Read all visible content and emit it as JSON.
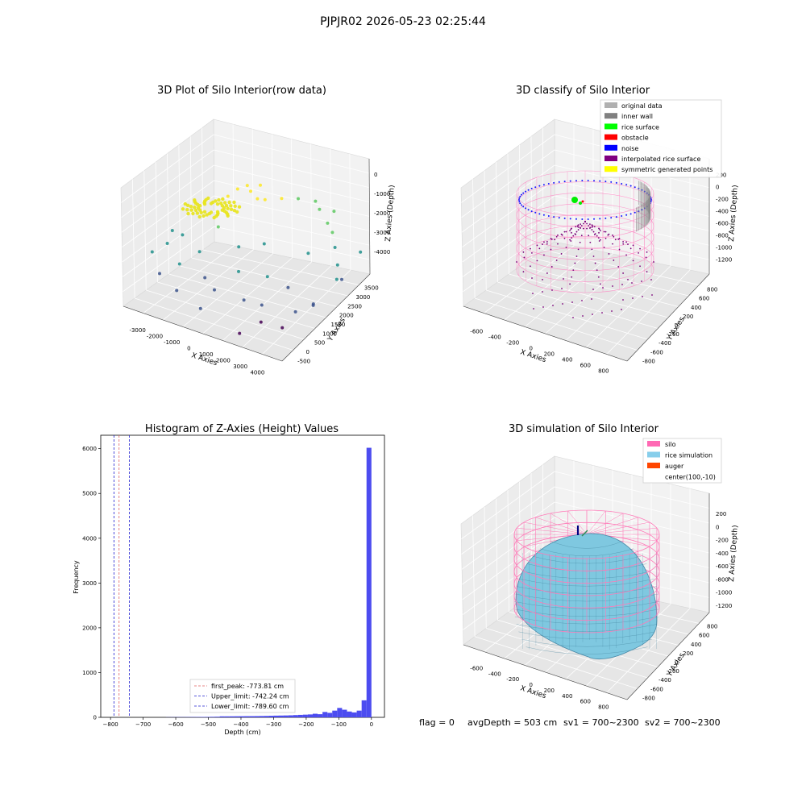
{
  "figure": {
    "suptitle": "PJPJR02 2026-05-23 02:25:44",
    "footer": {
      "flag": "flag = 0",
      "avg": "avgDepth = 503 cm",
      "sv1": "sv1 = 700~2300",
      "sv2": "sv2 = 700~2300"
    }
  },
  "chart_data": [
    {
      "type": "scatter",
      "subtype": "3d",
      "title": "3D Plot of Silo Interior(row data)",
      "xlabel": "X Axies",
      "ylabel": "Y Axies",
      "zlabel": "Z Axies (Depth)",
      "xticks": [
        "-3000",
        "-2000",
        "-1000",
        "0",
        "1000",
        "2000",
        "3000",
        "4000"
      ],
      "yticks": [
        "-500",
        "0",
        "500",
        "1000",
        "1500",
        "2000",
        "2500",
        "3000",
        "3500"
      ],
      "zticks": [
        "-4000",
        "-3000",
        "-2000",
        "-1000",
        "0"
      ],
      "colormap": [
        "#440154",
        "#3b528b",
        "#21918c",
        "#5ec962",
        "#fde725"
      ],
      "points": [
        {
          "x": -800,
          "y": 1800,
          "z": -200
        },
        {
          "x": -600,
          "y": 2000,
          "z": -150
        },
        {
          "x": -400,
          "y": 1900,
          "z": -250
        },
        {
          "x": -200,
          "y": 2100,
          "z": -100
        },
        {
          "x": 0,
          "y": 1700,
          "z": -300
        },
        {
          "x": 200,
          "y": 1800,
          "z": -350
        },
        {
          "x": -1000,
          "y": 1600,
          "z": -400
        },
        {
          "x": 500,
          "y": 2200,
          "z": -500
        },
        {
          "x": 800,
          "y": 2600,
          "z": -700
        },
        {
          "x": 1200,
          "y": 2900,
          "z": -900
        },
        {
          "x": 1500,
          "y": 2700,
          "z": -1000
        },
        {
          "x": 1800,
          "y": 3000,
          "z": -1200
        },
        {
          "x": 2200,
          "y": 2400,
          "z": -1500
        },
        {
          "x": 2600,
          "y": 2000,
          "z": -1700
        },
        {
          "x": 3000,
          "y": 1600,
          "z": -2000
        },
        {
          "x": 3200,
          "y": 1300,
          "z": -2300
        },
        {
          "x": -2200,
          "y": 1000,
          "z": -1800
        },
        {
          "x": -2600,
          "y": 800,
          "z": -2100
        },
        {
          "x": -3000,
          "y": 600,
          "z": -2400
        },
        {
          "x": -2000,
          "y": 600,
          "z": -2600
        },
        {
          "x": -1500,
          "y": 900,
          "z": -2200
        },
        {
          "x": -1000,
          "y": 500,
          "z": -2800
        },
        {
          "x": -500,
          "y": 300,
          "z": -3000
        },
        {
          "x": 0,
          "y": 800,
          "z": -2500
        },
        {
          "x": 500,
          "y": 400,
          "z": -3200
        },
        {
          "x": 1000,
          "y": 600,
          "z": -3400
        },
        {
          "x": 1500,
          "y": 1200,
          "z": -3000
        },
        {
          "x": 2000,
          "y": 900,
          "z": -3600
        },
        {
          "x": 2500,
          "y": 1100,
          "z": -3300
        },
        {
          "x": 3000,
          "y": 1800,
          "z": -2700
        },
        {
          "x": 1200,
          "y": 300,
          "z": -3800
        },
        {
          "x": 800,
          "y": -200,
          "z": -4000
        },
        {
          "x": -1800,
          "y": 200,
          "z": -3300
        },
        {
          "x": -2500,
          "y": 300,
          "z": -2900
        },
        {
          "x": -1200,
          "y": 1400,
          "z": -1500
        },
        {
          "x": 400,
          "y": 1500,
          "z": -1800
        },
        {
          "x": 1700,
          "y": 1900,
          "z": -2100
        },
        {
          "x": 2100,
          "y": 2300,
          "z": -1100
        },
        {
          "x": -300,
          "y": 1200,
          "z": -1900
        },
        {
          "x": 900,
          "y": 1000,
          "z": -2600
        },
        {
          "x": 1900,
          "y": 400,
          "z": -3900
        },
        {
          "x": -700,
          "y": -100,
          "z": -3500
        },
        {
          "x": 2800,
          "y": 700,
          "z": -3000
        },
        {
          "x": 3300,
          "y": 2300,
          "z": -1900
        },
        {
          "x": -2800,
          "y": 1300,
          "z": -2000
        }
      ]
    },
    {
      "type": "scatter",
      "subtype": "3d",
      "title": "3D classify of Silo Interior",
      "xlabel": "X Axies",
      "ylabel": "Y Axies",
      "zlabel": "Z Axies (Depth)",
      "xticks": [
        "-600",
        "-400",
        "-200",
        "0",
        "200",
        "400",
        "600",
        "800"
      ],
      "yticks": [
        "-800",
        "-600",
        "-400",
        "-200",
        "0",
        "200",
        "400",
        "600",
        "800"
      ],
      "zticks": [
        "-1200",
        "-1000",
        "-800",
        "-600",
        "-400",
        "-200",
        "0",
        "200"
      ],
      "legend_position": "top-right",
      "legend": [
        {
          "label": "original data",
          "color": "#b0b0b0"
        },
        {
          "label": "inner wall",
          "color": "#808080"
        },
        {
          "label": "rice surface",
          "color": "#00ff00"
        },
        {
          "label": "obstacle",
          "color": "#ff0000"
        },
        {
          "label": "noise",
          "color": "#0000ff"
        },
        {
          "label": "interpolated rice surface",
          "color": "#800080"
        },
        {
          "label": "symmetric generated points",
          "color": "#ffff00"
        }
      ]
    },
    {
      "type": "bar",
      "subtype": "histogram",
      "title": "Histogram of Z-Axies (Height) Values",
      "xlabel": "Depth (cm)",
      "ylabel": "Frequency",
      "xlim": [
        -830,
        40
      ],
      "ylim": [
        0,
        6300
      ],
      "xticks": [
        -800,
        -700,
        -600,
        -500,
        -400,
        -300,
        -200,
        -100,
        0
      ],
      "yticks": [
        0,
        1000,
        2000,
        3000,
        4000,
        5000,
        6000
      ],
      "bar_color": "#4c4cf0",
      "bin_width": 15,
      "bins": [
        {
          "x": -630,
          "v": 3
        },
        {
          "x": -615,
          "v": 4
        },
        {
          "x": -600,
          "v": 5
        },
        {
          "x": -585,
          "v": 5
        },
        {
          "x": -570,
          "v": 6
        },
        {
          "x": -555,
          "v": 7
        },
        {
          "x": -540,
          "v": 8
        },
        {
          "x": -525,
          "v": 9
        },
        {
          "x": -510,
          "v": 10
        },
        {
          "x": -495,
          "v": 12
        },
        {
          "x": -480,
          "v": 14
        },
        {
          "x": -465,
          "v": 22
        },
        {
          "x": -450,
          "v": 22
        },
        {
          "x": -435,
          "v": 23
        },
        {
          "x": -420,
          "v": 24
        },
        {
          "x": -405,
          "v": 25
        },
        {
          "x": -390,
          "v": 26
        },
        {
          "x": -375,
          "v": 27
        },
        {
          "x": -360,
          "v": 28
        },
        {
          "x": -345,
          "v": 30
        },
        {
          "x": -330,
          "v": 32
        },
        {
          "x": -315,
          "v": 35
        },
        {
          "x": -300,
          "v": 38
        },
        {
          "x": -285,
          "v": 40
        },
        {
          "x": -270,
          "v": 42
        },
        {
          "x": -255,
          "v": 45
        },
        {
          "x": -240,
          "v": 50
        },
        {
          "x": -225,
          "v": 55
        },
        {
          "x": -210,
          "v": 60
        },
        {
          "x": -195,
          "v": 65
        },
        {
          "x": -180,
          "v": 80
        },
        {
          "x": -165,
          "v": 70
        },
        {
          "x": -150,
          "v": 120
        },
        {
          "x": -135,
          "v": 100
        },
        {
          "x": -120,
          "v": 150
        },
        {
          "x": -105,
          "v": 210
        },
        {
          "x": -90,
          "v": 170
        },
        {
          "x": -75,
          "v": 130
        },
        {
          "x": -60,
          "v": 110
        },
        {
          "x": -45,
          "v": 150
        },
        {
          "x": -30,
          "v": 380
        },
        {
          "x": -15,
          "v": 6020
        }
      ],
      "vlines": [
        {
          "label": "first_peak: -773.81 cm",
          "x": -773.81,
          "color": "#e06060"
        },
        {
          "label": "Upper_limit: -742.24 cm",
          "x": -742.24,
          "color": "#2020d0"
        },
        {
          "label": "Lower_limit: -789.60 cm",
          "x": -789.6,
          "color": "#2020d0"
        }
      ]
    },
    {
      "type": "area",
      "subtype": "3d-surface",
      "title": "3D simulation of Silo Interior",
      "xlabel": "X Axies",
      "ylabel": "Y Axies",
      "zlabel": "Z Axies (Depth)",
      "xticks": [
        "-600",
        "-400",
        "-200",
        "0",
        "200",
        "400",
        "600",
        "800"
      ],
      "yticks": [
        "-800",
        "-600",
        "-400",
        "-200",
        "0",
        "200",
        "400",
        "600",
        "800"
      ],
      "zticks": [
        "-1200",
        "-1000",
        "-800",
        "-600",
        "-400",
        "-200",
        "0",
        "200"
      ],
      "legend_position": "top-right",
      "legend": [
        {
          "label": "silo",
          "color": "#ff69b4"
        },
        {
          "label": "rice simulation",
          "color": "#87ceeb"
        },
        {
          "label": "auger",
          "color": "#ff4500"
        },
        {
          "label": "center(100,-10)",
          "color": "#ffffff"
        }
      ]
    }
  ]
}
